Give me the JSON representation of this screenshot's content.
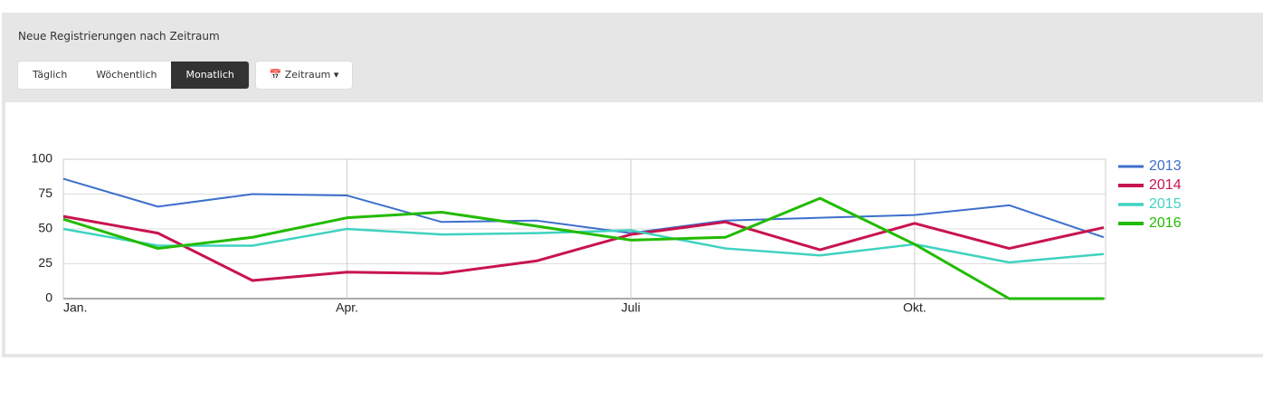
{
  "header": {
    "title": "Neue Registrierungen nach Zeitraum",
    "buttons": [
      "Täglich",
      "Wöchentlich",
      "Monatlich"
    ],
    "dropdown": "Zeitraum"
  },
  "chart_data": {
    "type": "line",
    "categories": [
      "Jan.",
      null,
      null,
      "Apr.",
      null,
      null,
      "Juli",
      null,
      null,
      "Okt.",
      null,
      null
    ],
    "series": [
      {
        "name": "2013",
        "color": "#3d6fcc",
        "values": [
          86,
          66,
          75,
          74,
          55,
          56,
          47,
          56,
          58,
          60,
          67,
          44
        ]
      },
      {
        "name": "2014",
        "color": "#c8144f",
        "values": [
          59,
          47,
          13,
          19,
          18,
          27,
          46,
          55,
          35,
          54,
          36,
          51
        ]
      },
      {
        "name": "2015",
        "color": "#3fd2c0",
        "values": [
          50,
          38,
          38,
          50,
          46,
          47,
          49,
          36,
          31,
          39,
          26,
          32
        ]
      },
      {
        "name": "2016",
        "color": "#22bb00",
        "values": [
          57,
          36,
          44,
          58,
          62,
          52,
          42,
          44,
          72,
          39,
          0,
          0
        ]
      }
    ],
    "ylim": [
      0,
      100
    ],
    "yticks": [
      0,
      25,
      50,
      75,
      100
    ],
    "grid": true
  }
}
